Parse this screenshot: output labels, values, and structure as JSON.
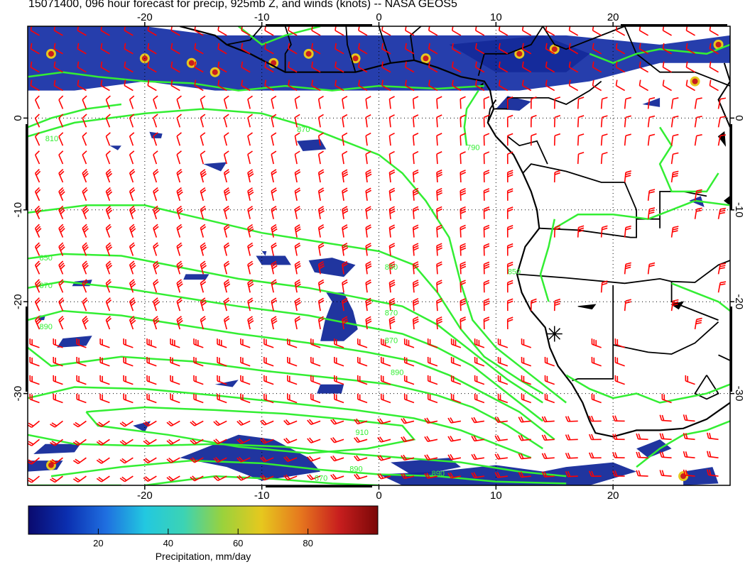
{
  "title": "15071400, 096 hour forecast for precip, 925mb Z, and winds (knots) -- NASA GEOS5",
  "map": {
    "lon_range": [
      -30,
      30
    ],
    "lat_range": [
      -40,
      10
    ],
    "x_ticks": [
      -20,
      -10,
      0,
      10,
      20
    ],
    "y_ticks": [
      0,
      -10,
      -20,
      -30
    ],
    "grid": "dotted",
    "land_outline_color": "#000000",
    "contour_color": "#33ee33",
    "barb_color": "#ff0000"
  },
  "contour_labels": [
    {
      "text": "810",
      "lon": -28.5,
      "lat": -2.5
    },
    {
      "text": "870",
      "lon": -7,
      "lat": -1.5
    },
    {
      "text": "790",
      "lon": 7.5,
      "lat": -3.5
    },
    {
      "text": "850",
      "lon": -29,
      "lat": -15.5
    },
    {
      "text": "870",
      "lon": -29,
      "lat": -18.5
    },
    {
      "text": "890",
      "lon": -29,
      "lat": -23
    },
    {
      "text": "850",
      "lon": 0.5,
      "lat": -16.5
    },
    {
      "text": "870",
      "lon": 0.5,
      "lat": -21.5
    },
    {
      "text": "870",
      "lon": 0.5,
      "lat": -24.5
    },
    {
      "text": "890",
      "lon": 1,
      "lat": -28
    },
    {
      "text": "910",
      "lon": -2,
      "lat": -34.5
    },
    {
      "text": "890",
      "lon": -2.5,
      "lat": -38.5
    },
    {
      "text": "870",
      "lon": -5.5,
      "lat": -39.5
    },
    {
      "text": "890",
      "lon": 4.5,
      "lat": -39
    },
    {
      "text": "850",
      "lon": 11,
      "lat": -17
    }
  ],
  "marker": {
    "symbol": "asterisk",
    "lon": 15,
    "lat": -23.5
  },
  "colorbar": {
    "label": "Precipitation, mm/day",
    "ticks": [
      "20",
      "40",
      "60",
      "80"
    ],
    "tick_values": [
      20,
      40,
      60,
      80
    ],
    "range": [
      0,
      100
    ],
    "colors": [
      "#0a0a6e",
      "#0b2fb0",
      "#1f6fe0",
      "#22c8e0",
      "#3cd3b4",
      "#9ad23c",
      "#e6c81e",
      "#e6781e",
      "#c81e1e",
      "#7a0808"
    ]
  }
}
